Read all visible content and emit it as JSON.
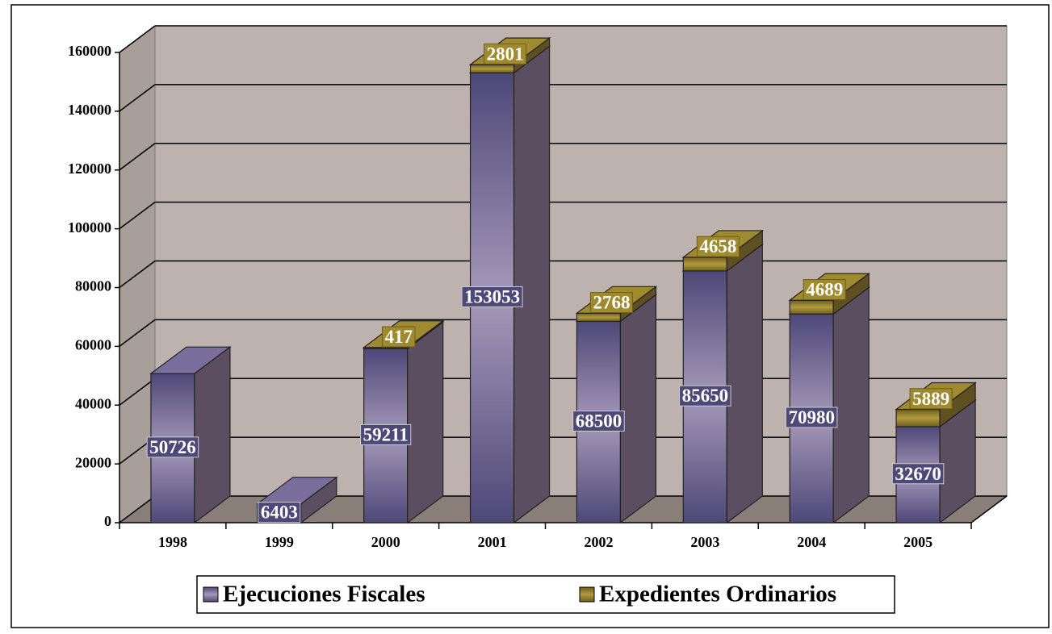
{
  "chart_data": {
    "type": "bar3d-stacked",
    "categories": [
      "1998",
      "1999",
      "2000",
      "2001",
      "2002",
      "2003",
      "2004",
      "2005"
    ],
    "series": [
      {
        "name": "Ejecuciones Fiscales",
        "color": "#5e5890",
        "values": [
          50726,
          6403,
          59211,
          153053,
          68500,
          85650,
          70980,
          32670
        ]
      },
      {
        "name": "Expedientes Ordinarios",
        "color": "#8c7a28",
        "values": [
          null,
          null,
          417,
          2801,
          2768,
          4658,
          4689,
          5889
        ]
      }
    ],
    "ylim": [
      0,
      160000
    ],
    "yticks": [
      0,
      20000,
      40000,
      60000,
      80000,
      100000,
      120000,
      140000,
      160000
    ],
    "grid": true,
    "legend": "bottom"
  }
}
